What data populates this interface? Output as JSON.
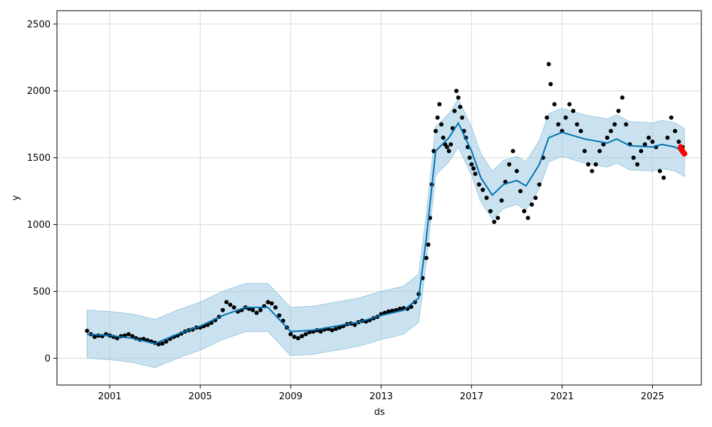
{
  "chart_data": {
    "type": "scatter",
    "title": "",
    "xlabel": "ds",
    "ylabel": "y",
    "xlim": [
      "1998-09-01",
      "2027-03-01"
    ],
    "ylim": [
      -200,
      2600
    ],
    "grid": true,
    "x_ticks": [
      "2001",
      "2005",
      "2009",
      "2013",
      "2017",
      "2021",
      "2025"
    ],
    "y_ticks": [
      0,
      500,
      1000,
      1500,
      2000,
      2500
    ],
    "colors": {
      "observed": "#000000",
      "forecast_line": "#0072B2",
      "uncertainty_band": "#9ecae1",
      "recent_points": "#ff0000"
    },
    "series": [
      {
        "kind": "observed",
        "points": [
          [
            "2000-01-01",
            205
          ],
          [
            "2000-03-01",
            180
          ],
          [
            "2000-05-01",
            160
          ],
          [
            "2000-07-01",
            170
          ],
          [
            "2000-09-01",
            165
          ],
          [
            "2000-11-01",
            180
          ],
          [
            "2001-01-01",
            170
          ],
          [
            "2001-03-01",
            160
          ],
          [
            "2001-05-01",
            150
          ],
          [
            "2001-07-01",
            165
          ],
          [
            "2001-09-01",
            170
          ],
          [
            "2001-11-01",
            180
          ],
          [
            "2002-01-01",
            165
          ],
          [
            "2002-03-01",
            150
          ],
          [
            "2002-05-01",
            140
          ],
          [
            "2002-07-01",
            145
          ],
          [
            "2002-09-01",
            135
          ],
          [
            "2002-11-01",
            125
          ],
          [
            "2003-01-01",
            115
          ],
          [
            "2003-03-01",
            105
          ],
          [
            "2003-05-01",
            110
          ],
          [
            "2003-07-01",
            125
          ],
          [
            "2003-09-01",
            145
          ],
          [
            "2003-11-01",
            160
          ],
          [
            "2004-01-01",
            170
          ],
          [
            "2004-03-01",
            185
          ],
          [
            "2004-05-01",
            200
          ],
          [
            "2004-07-01",
            210
          ],
          [
            "2004-09-01",
            215
          ],
          [
            "2004-11-01",
            230
          ],
          [
            "2005-01-01",
            230
          ],
          [
            "2005-03-01",
            240
          ],
          [
            "2005-05-01",
            250
          ],
          [
            "2005-07-01",
            265
          ],
          [
            "2005-09-01",
            285
          ],
          [
            "2005-11-01",
            310
          ],
          [
            "2006-01-01",
            360
          ],
          [
            "2006-03-01",
            420
          ],
          [
            "2006-05-01",
            400
          ],
          [
            "2006-07-01",
            380
          ],
          [
            "2006-09-01",
            350
          ],
          [
            "2006-11-01",
            360
          ],
          [
            "2007-01-01",
            380
          ],
          [
            "2007-03-01",
            370
          ],
          [
            "2007-05-01",
            360
          ],
          [
            "2007-07-01",
            340
          ],
          [
            "2007-09-01",
            360
          ],
          [
            "2007-11-01",
            390
          ],
          [
            "2008-01-01",
            420
          ],
          [
            "2008-03-01",
            410
          ],
          [
            "2008-05-01",
            380
          ],
          [
            "2008-07-01",
            320
          ],
          [
            "2008-09-01",
            280
          ],
          [
            "2008-11-01",
            230
          ],
          [
            "2009-01-01",
            180
          ],
          [
            "2009-03-01",
            160
          ],
          [
            "2009-05-01",
            150
          ],
          [
            "2009-07-01",
            165
          ],
          [
            "2009-09-01",
            180
          ],
          [
            "2009-11-01",
            195
          ],
          [
            "2010-01-01",
            200
          ],
          [
            "2010-03-01",
            210
          ],
          [
            "2010-05-01",
            200
          ],
          [
            "2010-07-01",
            215
          ],
          [
            "2010-09-01",
            220
          ],
          [
            "2010-11-01",
            210
          ],
          [
            "2011-01-01",
            220
          ],
          [
            "2011-03-01",
            230
          ],
          [
            "2011-05-01",
            240
          ],
          [
            "2011-07-01",
            255
          ],
          [
            "2011-09-01",
            260
          ],
          [
            "2011-11-01",
            250
          ],
          [
            "2012-01-01",
            270
          ],
          [
            "2012-03-01",
            280
          ],
          [
            "2012-05-01",
            275
          ],
          [
            "2012-07-01",
            285
          ],
          [
            "2012-09-01",
            300
          ],
          [
            "2012-11-01",
            310
          ],
          [
            "2013-01-01",
            330
          ],
          [
            "2013-03-01",
            340
          ],
          [
            "2013-05-01",
            350
          ],
          [
            "2013-07-01",
            355
          ],
          [
            "2013-09-01",
            360
          ],
          [
            "2013-11-01",
            370
          ],
          [
            "2014-01-01",
            375
          ],
          [
            "2014-03-01",
            370
          ],
          [
            "2014-05-01",
            385
          ],
          [
            "2014-07-01",
            420
          ],
          [
            "2014-09-01",
            480
          ],
          [
            "2014-11-01",
            600
          ],
          [
            "2015-01-01",
            750
          ],
          [
            "2015-02-01",
            850
          ],
          [
            "2015-03-01",
            1050
          ],
          [
            "2015-04-01",
            1300
          ],
          [
            "2015-05-01",
            1550
          ],
          [
            "2015-06-01",
            1700
          ],
          [
            "2015-07-01",
            1800
          ],
          [
            "2015-08-01",
            1900
          ],
          [
            "2015-09-01",
            1750
          ],
          [
            "2015-10-01",
            1650
          ],
          [
            "2015-11-01",
            1600
          ],
          [
            "2015-12-01",
            1580
          ],
          [
            "2016-01-01",
            1550
          ],
          [
            "2016-02-01",
            1600
          ],
          [
            "2016-03-01",
            1720
          ],
          [
            "2016-04-01",
            1850
          ],
          [
            "2016-05-01",
            2000
          ],
          [
            "2016-06-01",
            1950
          ],
          [
            "2016-07-01",
            1880
          ],
          [
            "2016-08-01",
            1800
          ],
          [
            "2016-09-01",
            1700
          ],
          [
            "2016-10-01",
            1650
          ],
          [
            "2016-11-01",
            1580
          ],
          [
            "2016-12-01",
            1500
          ],
          [
            "2017-01-01",
            1450
          ],
          [
            "2017-02-01",
            1420
          ],
          [
            "2017-03-01",
            1380
          ],
          [
            "2017-05-01",
            1300
          ],
          [
            "2017-07-01",
            1260
          ],
          [
            "2017-09-01",
            1200
          ],
          [
            "2017-11-01",
            1100
          ],
          [
            "2018-01-01",
            1020
          ],
          [
            "2018-03-01",
            1050
          ],
          [
            "2018-05-01",
            1180
          ],
          [
            "2018-07-01",
            1320
          ],
          [
            "2018-09-01",
            1450
          ],
          [
            "2018-11-01",
            1550
          ],
          [
            "2019-01-01",
            1400
          ],
          [
            "2019-03-01",
            1250
          ],
          [
            "2019-05-01",
            1100
          ],
          [
            "2019-07-01",
            1050
          ],
          [
            "2019-09-01",
            1150
          ],
          [
            "2019-11-01",
            1200
          ],
          [
            "2020-01-01",
            1300
          ],
          [
            "2020-03-01",
            1500
          ],
          [
            "2020-05-01",
            1800
          ],
          [
            "2020-06-01",
            2200
          ],
          [
            "2020-07-01",
            2050
          ],
          [
            "2020-09-01",
            1900
          ],
          [
            "2020-11-01",
            1750
          ],
          [
            "2021-01-01",
            1700
          ],
          [
            "2021-03-01",
            1800
          ],
          [
            "2021-05-01",
            1900
          ],
          [
            "2021-07-01",
            1850
          ],
          [
            "2021-09-01",
            1750
          ],
          [
            "2021-11-01",
            1700
          ],
          [
            "2022-01-01",
            1550
          ],
          [
            "2022-03-01",
            1450
          ],
          [
            "2022-05-01",
            1400
          ],
          [
            "2022-07-01",
            1450
          ],
          [
            "2022-09-01",
            1550
          ],
          [
            "2022-11-01",
            1600
          ],
          [
            "2023-01-01",
            1650
          ],
          [
            "2023-03-01",
            1700
          ],
          [
            "2023-05-01",
            1750
          ],
          [
            "2023-07-01",
            1850
          ],
          [
            "2023-09-01",
            1950
          ],
          [
            "2023-11-01",
            1750
          ],
          [
            "2024-01-01",
            1600
          ],
          [
            "2024-03-01",
            1500
          ],
          [
            "2024-05-01",
            1450
          ],
          [
            "2024-07-01",
            1550
          ],
          [
            "2024-09-01",
            1600
          ],
          [
            "2024-11-01",
            1650
          ],
          [
            "2025-01-01",
            1620
          ],
          [
            "2025-03-01",
            1580
          ],
          [
            "2025-05-01",
            1400
          ],
          [
            "2025-07-01",
            1350
          ],
          [
            "2025-09-01",
            1650
          ],
          [
            "2025-11-01",
            1800
          ],
          [
            "2026-01-01",
            1700
          ],
          [
            "2026-03-01",
            1620
          ],
          [
            "2026-05-01",
            1580
          ]
        ]
      },
      {
        "kind": "forecast",
        "points": [
          [
            "2000-01-01",
            180
          ],
          [
            "2001-01-01",
            170
          ],
          [
            "2002-01-01",
            150
          ],
          [
            "2003-01-01",
            110
          ],
          [
            "2004-01-01",
            180
          ],
          [
            "2005-01-01",
            240
          ],
          [
            "2006-01-01",
            320
          ],
          [
            "2007-01-01",
            380
          ],
          [
            "2008-01-01",
            380
          ],
          [
            "2009-01-01",
            200
          ],
          [
            "2010-01-01",
            210
          ],
          [
            "2011-01-01",
            240
          ],
          [
            "2012-01-01",
            270
          ],
          [
            "2013-01-01",
            320
          ],
          [
            "2014-01-01",
            360
          ],
          [
            "2014-09-01",
            450
          ],
          [
            "2015-01-01",
            900
          ],
          [
            "2015-06-01",
            1550
          ],
          [
            "2016-01-01",
            1650
          ],
          [
            "2016-06-01",
            1760
          ],
          [
            "2017-01-01",
            1550
          ],
          [
            "2017-06-01",
            1350
          ],
          [
            "2017-12-01",
            1220
          ],
          [
            "2018-06-01",
            1300
          ],
          [
            "2019-01-01",
            1330
          ],
          [
            "2019-06-01",
            1290
          ],
          [
            "2020-01-01",
            1450
          ],
          [
            "2020-06-01",
            1650
          ],
          [
            "2021-01-01",
            1690
          ],
          [
            "2022-01-01",
            1640
          ],
          [
            "2023-01-01",
            1610
          ],
          [
            "2023-06-01",
            1640
          ],
          [
            "2024-01-01",
            1590
          ],
          [
            "2025-01-01",
            1580
          ],
          [
            "2025-06-01",
            1600
          ],
          [
            "2026-01-01",
            1580
          ],
          [
            "2026-06-01",
            1540
          ]
        ],
        "band_half_width": 180
      },
      {
        "kind": "recent",
        "points": [
          [
            "2026-04-01",
            1580
          ],
          [
            "2026-04-15",
            1560
          ],
          [
            "2026-05-01",
            1550
          ],
          [
            "2026-05-15",
            1540
          ],
          [
            "2026-06-01",
            1530
          ]
        ]
      }
    ]
  }
}
